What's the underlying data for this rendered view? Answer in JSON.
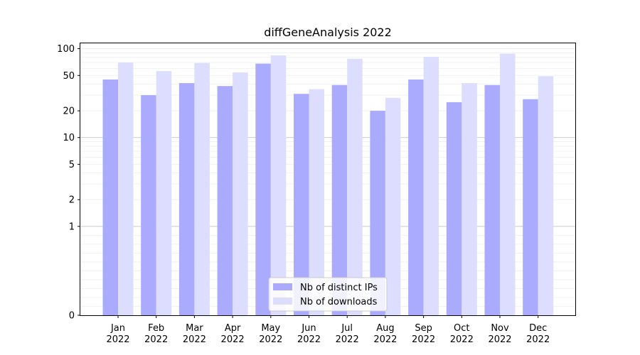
{
  "chart_data": {
    "type": "bar",
    "title": "diffGeneAnalysis 2022",
    "xlabel": "",
    "ylabel": "",
    "yscale": "symlog",
    "ylim": [
      0,
      100
    ],
    "yticks": [
      0,
      1,
      2,
      5,
      10,
      20,
      50,
      100
    ],
    "categories": [
      "Jan\n2022",
      "Feb\n2022",
      "Mar\n2022",
      "Apr\n2022",
      "May\n2022",
      "Jun\n2022",
      "Jul\n2022",
      "Aug\n2022",
      "Sep\n2022",
      "Oct\n2022",
      "Nov\n2022",
      "Dec\n2022"
    ],
    "series": [
      {
        "name": "Nb of distinct IPs",
        "color": "#aaaaff",
        "values": [
          45,
          30,
          41,
          38,
          68,
          31,
          39,
          20,
          45,
          25,
          39,
          27
        ]
      },
      {
        "name": "Nb of downloads",
        "color": "#ddddff",
        "values": [
          70,
          56,
          69,
          54,
          84,
          35,
          77,
          28,
          81,
          41,
          88,
          49
        ]
      }
    ],
    "grid": true,
    "legend_position": "bottom-center"
  }
}
